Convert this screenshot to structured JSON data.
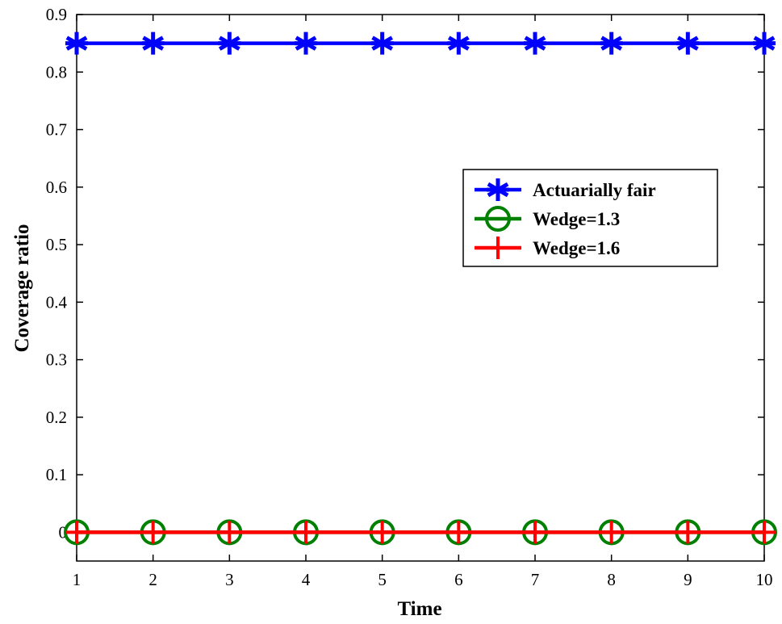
{
  "chart_data": {
    "type": "line",
    "xlabel": "Time",
    "ylabel": "Coverage ratio",
    "xlim": [
      1,
      10
    ],
    "ylim": [
      -0.05,
      0.9
    ],
    "xticks": [
      1,
      2,
      3,
      4,
      5,
      6,
      7,
      8,
      9,
      10
    ],
    "yticks": [
      0,
      0.1,
      0.2,
      0.3,
      0.4,
      0.5,
      0.6,
      0.7,
      0.8,
      0.9
    ],
    "ytick_labels": [
      "0",
      "0.1",
      "0.2",
      "0.3",
      "0.4",
      "0.5",
      "0.6",
      "0.7",
      "0.8",
      "0.9"
    ],
    "grid": false,
    "legend_position": "center-right",
    "x": [
      1,
      2,
      3,
      4,
      5,
      6,
      7,
      8,
      9,
      10
    ],
    "series": [
      {
        "name": "Actuarially fair",
        "marker": "asterisk",
        "color": "#0000ff",
        "values": [
          0.85,
          0.85,
          0.85,
          0.85,
          0.85,
          0.85,
          0.85,
          0.85,
          0.85,
          0.85
        ]
      },
      {
        "name": "Wedge=1.3",
        "marker": "circle",
        "color": "#008000",
        "values": [
          0,
          0,
          0,
          0,
          0,
          0,
          0,
          0,
          0,
          0
        ]
      },
      {
        "name": "Wedge=1.6",
        "marker": "plus",
        "color": "#ff0000",
        "values": [
          0,
          0,
          0,
          0,
          0,
          0,
          0,
          0,
          0,
          0
        ]
      }
    ]
  }
}
